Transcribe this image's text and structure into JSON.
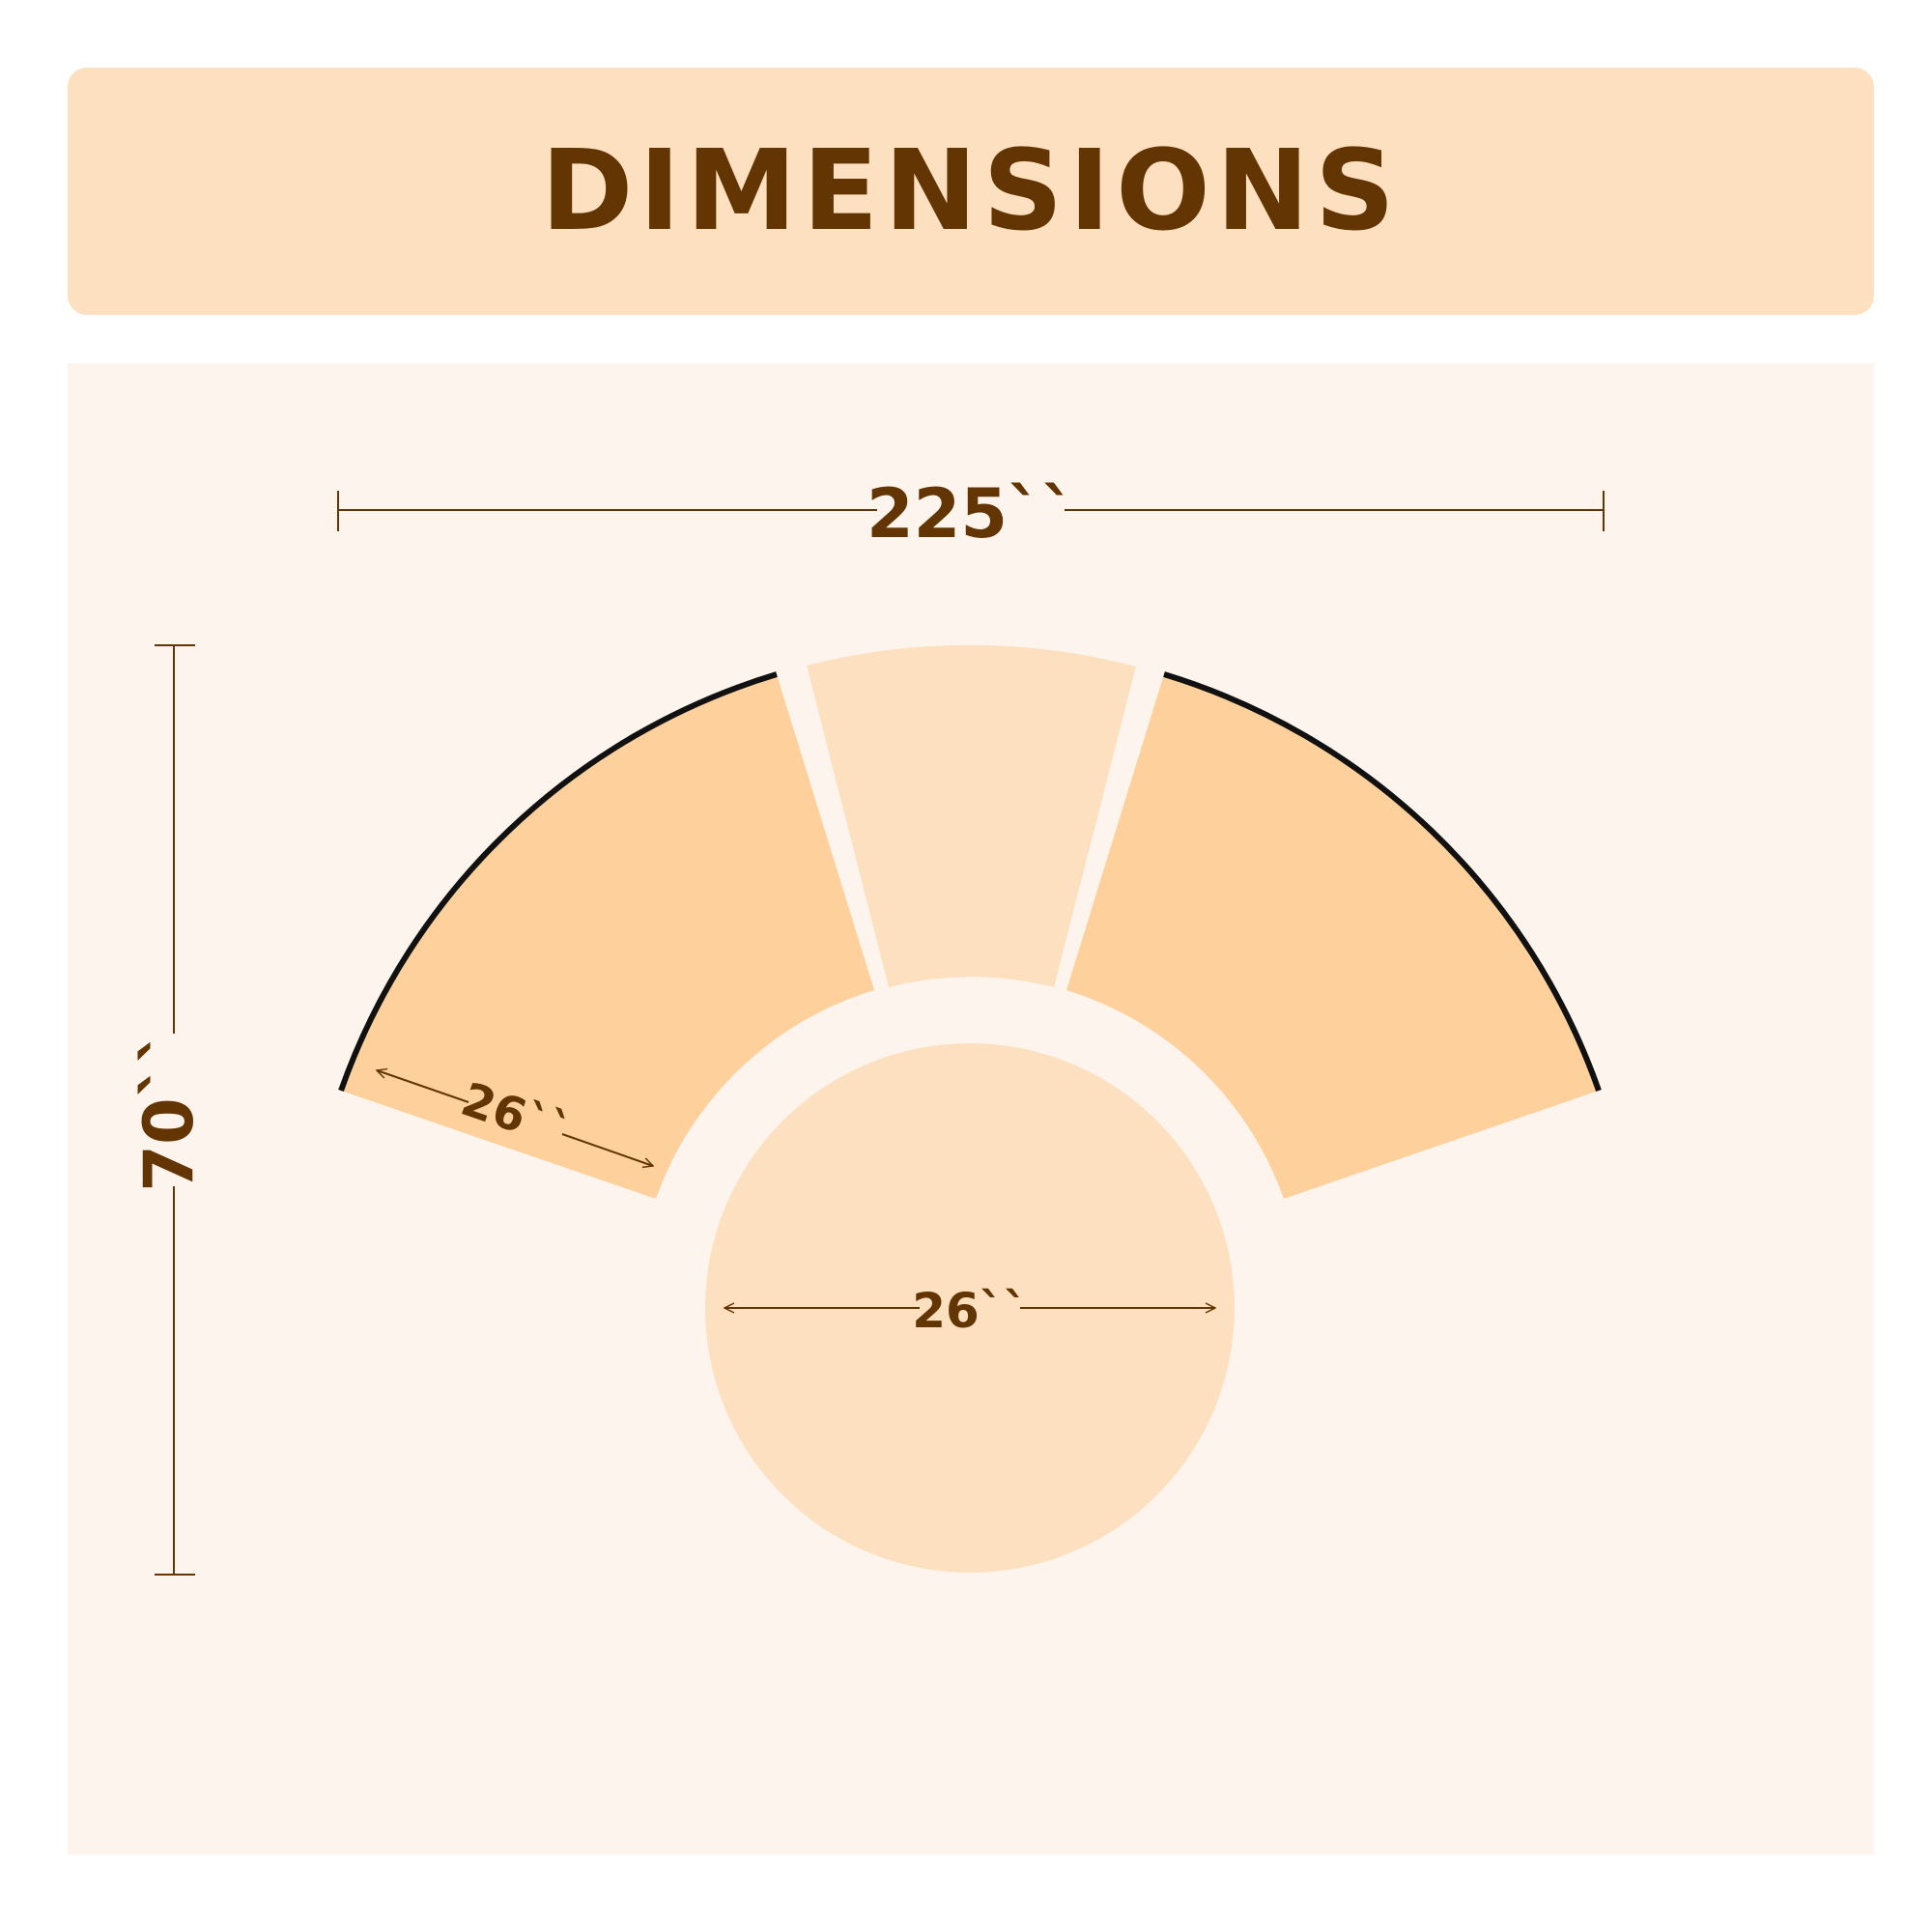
{
  "header": {
    "title": "DIMENSIONS"
  },
  "diagram": {
    "width_label": "225``",
    "depth_label": "70``",
    "seat_depth_label": "26``",
    "table_diameter_label": "26``"
  },
  "colors": {
    "header_bg": "#fce0bf",
    "panel_bg": "#fdf5ed",
    "corner_section": "#fdd09c",
    "center_section": "#fce0bf",
    "table": "#fce0bf",
    "text": "#633502"
  }
}
